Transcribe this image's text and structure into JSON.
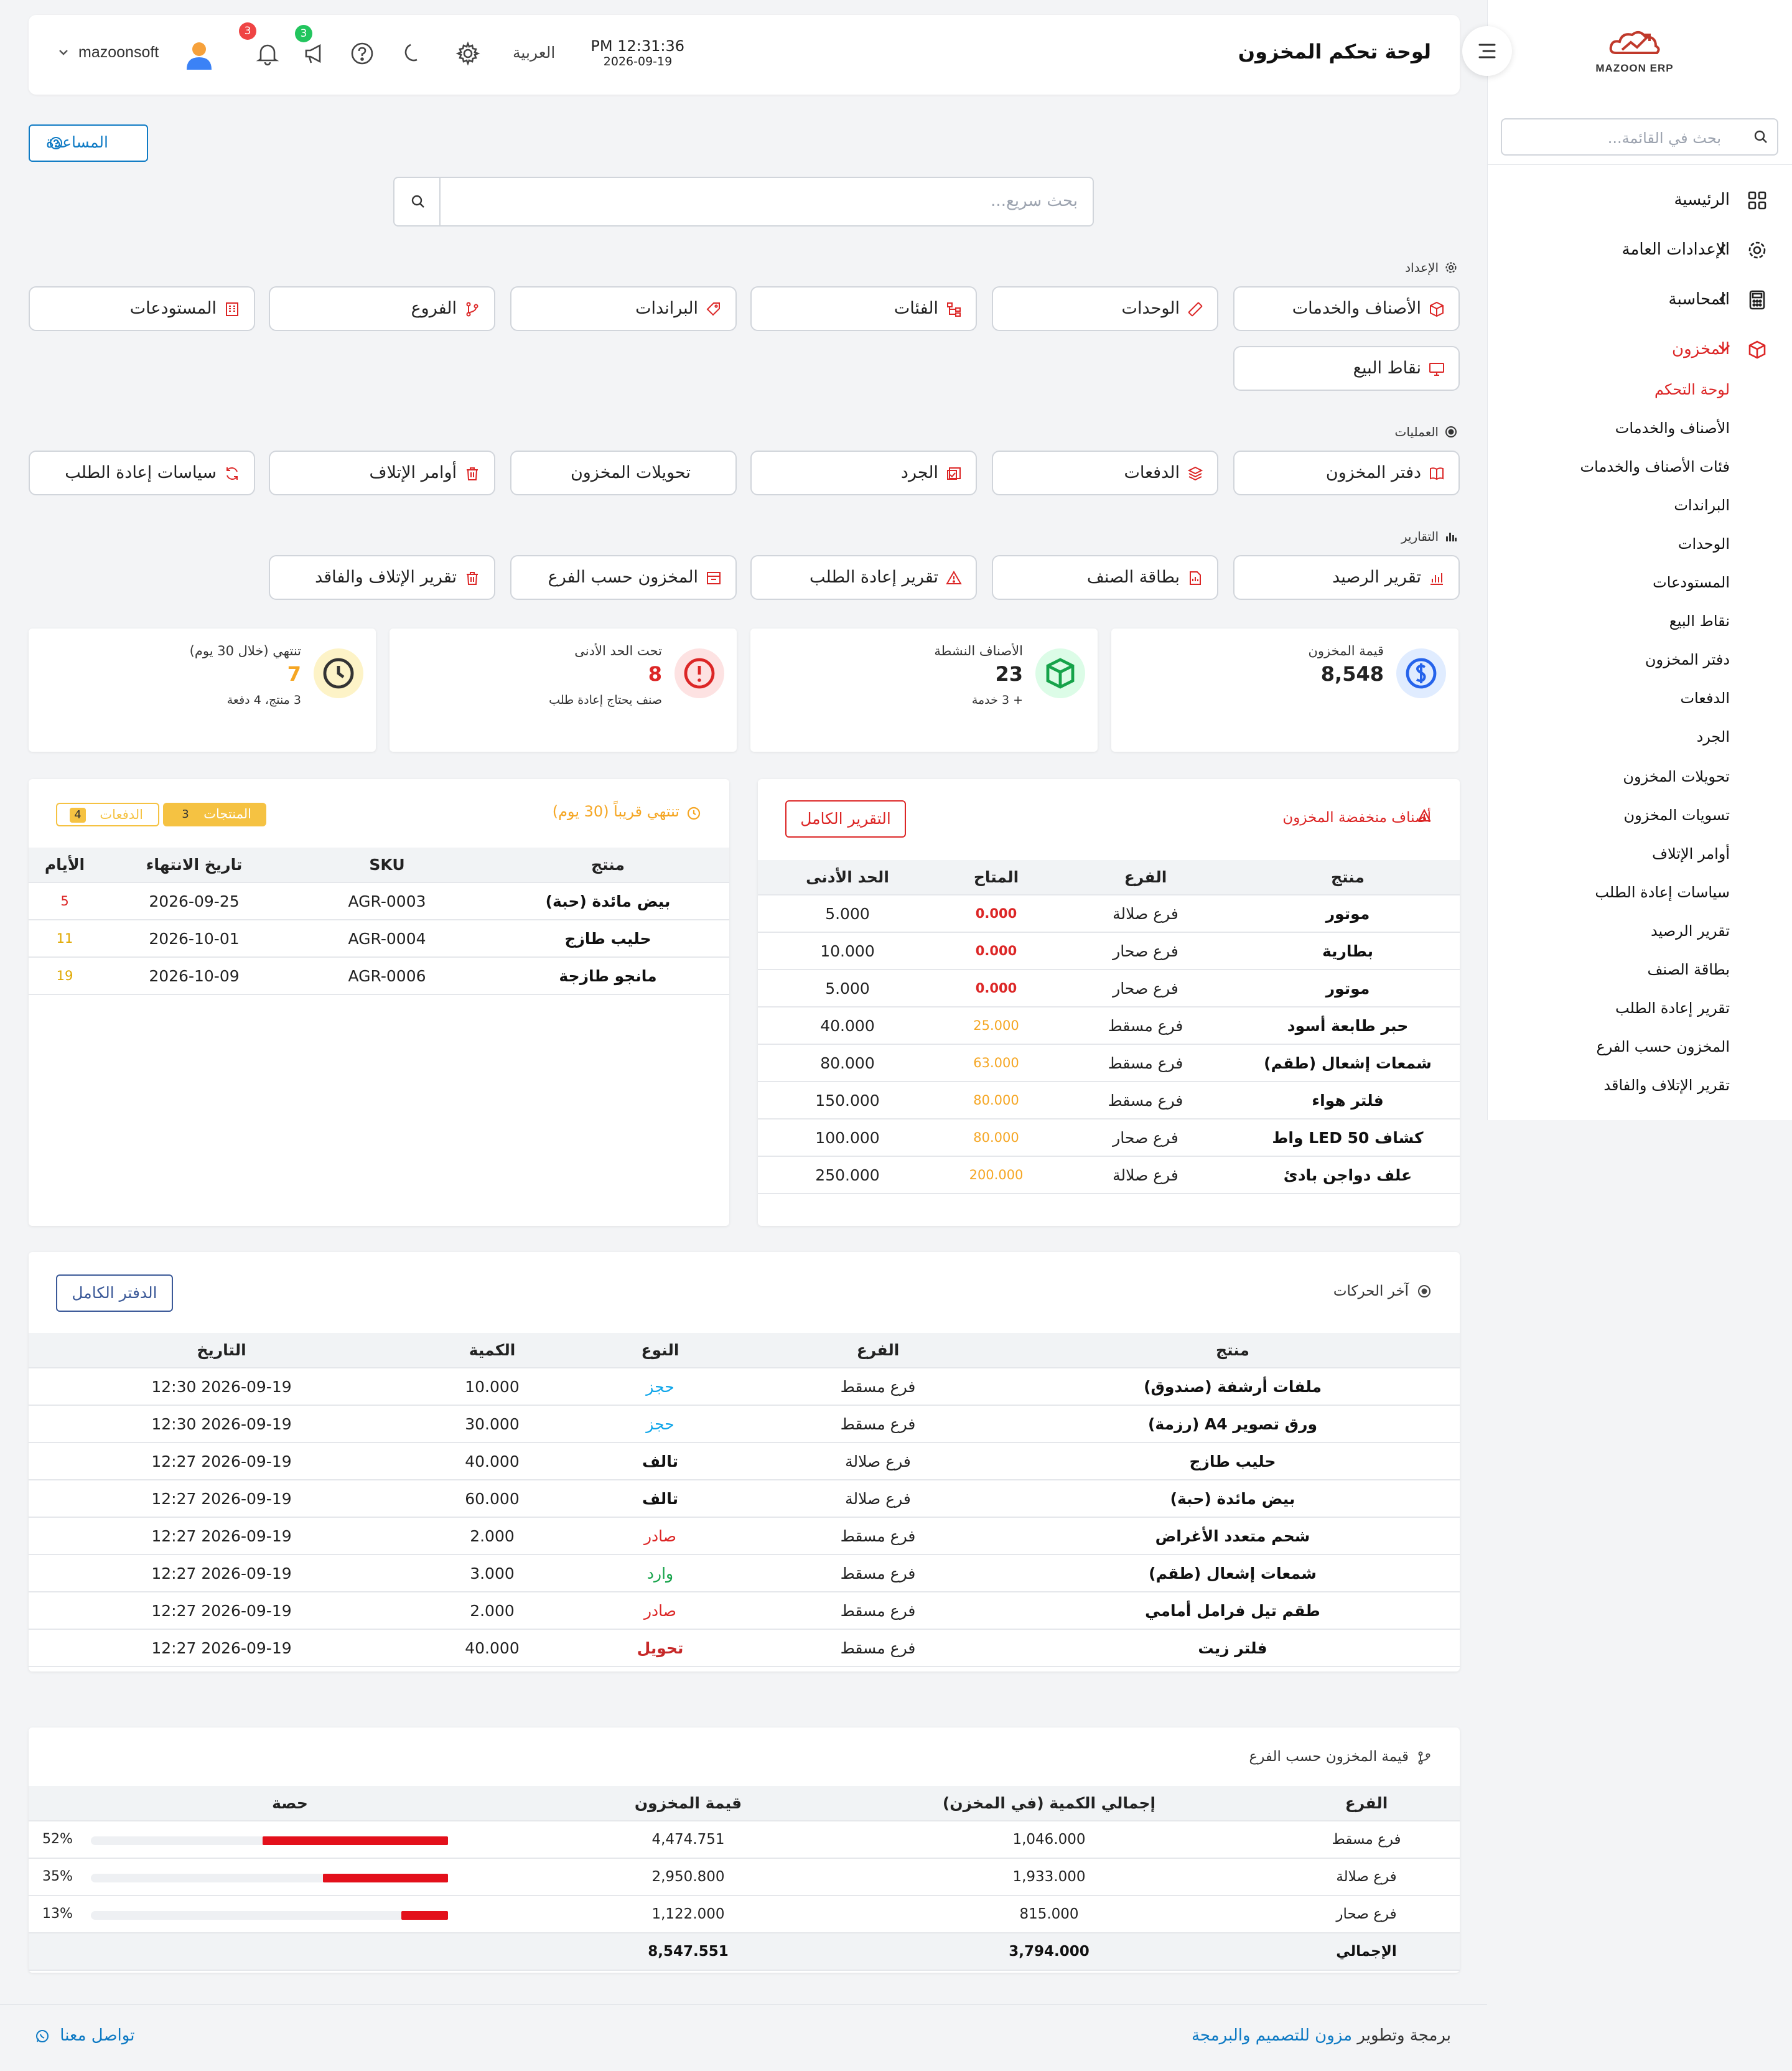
{
  "sidebar": {
    "brand": "MAZOON ERP",
    "search_placeholder": "بحث في القائمة...",
    "menu": [
      {
        "label": "الرئيسية"
      },
      {
        "label": "الإعدادات العامة"
      },
      {
        "label": "المحاسبة"
      },
      {
        "label": "المخزون"
      }
    ],
    "inventory_sub": [
      "لوحة التحكم",
      "الأصناف والخدمات",
      "فئات الأصناف والخدمات",
      "البراندات",
      "الوحدات",
      "المستودعات",
      "نقاط البيع",
      "دفتر المخزون",
      "الدفعات",
      "الجرد",
      "تحويلات المخزون",
      "تسويات المخزون",
      "أوامر الإتلاف",
      "سياسات إعادة الطلب",
      "تقرير الرصيد",
      "بطاقة الصنف",
      "تقرير إعادة الطلب",
      "المخزون حسب الفرع",
      "تقرير الإتلاف والفاقد"
    ]
  },
  "header": {
    "title": "لوحة تحكم المخزون",
    "time": "PM 12:31:36",
    "date": "2026-09-19",
    "language": "العربية",
    "username": "mazoonsoft",
    "notif_count": "3",
    "announce_count": "3"
  },
  "help_label": "المساعدة",
  "search_placeholder": "بحث سريع...",
  "sections": {
    "setup": "الإعداد",
    "operations": "العمليات",
    "reports": "التقارير"
  },
  "setup_buttons": [
    "الأصناف والخدمات",
    "الوحدات",
    "الفئات",
    "البراندات",
    "الفروع",
    "المستودعات",
    "نقاط البيع"
  ],
  "ops_buttons": [
    "دفتر المخزون",
    "الدفعات",
    "الجرد",
    "تحويلات المخزون",
    "أوامر الإتلاف",
    "سياسات إعادة الطلب"
  ],
  "report_buttons": [
    "تقرير الرصيد",
    "بطاقة الصنف",
    "تقرير إعادة الطلب",
    "المخزون حسب الفرع",
    "تقرير الإتلاف والفاقد"
  ],
  "stats": [
    {
      "label": "قيمة المخزون",
      "value": "8,548",
      "sub": ""
    },
    {
      "label": "الأصناف النشطة",
      "value": "23",
      "sub": "+ 3 خدمة"
    },
    {
      "label": "تحت الحد الأدنى",
      "value": "8",
      "sub": "صنف يحتاج إعادة طلب"
    },
    {
      "label": "تنتهي (خلال 30 يوم)",
      "value": "7",
      "sub": "3 منتج، 4 دفعة"
    }
  ],
  "low_stock": {
    "title": "أصناف منخفضة المخزون",
    "button": "التقرير الكامل",
    "columns": [
      "منتج",
      "الفرع",
      "المتاح",
      "الحد الأدنى"
    ],
    "rows": [
      [
        "موتور",
        "فرع صلالة",
        "0.000",
        "5.000"
      ],
      [
        "بطارية",
        "فرع صحار",
        "0.000",
        "10.000"
      ],
      [
        "موتور",
        "فرع صحار",
        "0.000",
        "5.000"
      ],
      [
        "حبر طابعة أسود",
        "فرع مسقط",
        "25.000",
        "40.000"
      ],
      [
        "شمعات إشعال (طقم)",
        "فرع مسقط",
        "63.000",
        "80.000"
      ],
      [
        "فلتر هواء",
        "فرع مسقط",
        "80.000",
        "150.000"
      ],
      [
        "كشاف LED 50 واط",
        "فرع صحار",
        "80.000",
        "100.000"
      ],
      [
        "علف دواجن بادئ",
        "فرع صلالة",
        "200.000",
        "250.000"
      ]
    ]
  },
  "expiring": {
    "title": "تنتهي قريباً (30 يوم)",
    "tab_products": "المنتجات",
    "tab_products_count": "3",
    "tab_batches": "الدفعات",
    "tab_batches_count": "4",
    "columns": [
      "منتج",
      "SKU",
      "تاريخ الانتهاء",
      "الأيام"
    ],
    "rows": [
      [
        "بيض مائدة (حبة)",
        "AGR-0003",
        "2026-09-25",
        "5"
      ],
      [
        "حليب طازج",
        "AGR-0004",
        "2026-10-01",
        "11"
      ],
      [
        "مانجو طازجة",
        "AGR-0006",
        "2026-10-09",
        "19"
      ]
    ]
  },
  "movements": {
    "title": "آخر الحركات",
    "button": "الدفتر الكامل",
    "columns": [
      "منتج",
      "الفرع",
      "النوع",
      "الكمية",
      "التاريخ"
    ],
    "rows": [
      [
        "ملفات أرشفة (صندوق)",
        "فرع مسقط",
        "حجز",
        "10.000",
        "2026-09-19 12:30"
      ],
      [
        "ورق تصوير A4 (رزمة)",
        "فرع مسقط",
        "حجز",
        "30.000",
        "2026-09-19 12:30"
      ],
      [
        "حليب طازج",
        "فرع صلالة",
        "تالف",
        "40.000",
        "2026-09-19 12:27"
      ],
      [
        "بيض مائدة (حبة)",
        "فرع صلالة",
        "تالف",
        "60.000",
        "2026-09-19 12:27"
      ],
      [
        "شحم متعدد الأغراض",
        "فرع مسقط",
        "صادر",
        "2.000",
        "2026-09-19 12:27"
      ],
      [
        "شمعات إشعال (طقم)",
        "فرع مسقط",
        "وارد",
        "3.000",
        "2026-09-19 12:27"
      ],
      [
        "طقم تيل فرامل أمامي",
        "فرع مسقط",
        "صادر",
        "2.000",
        "2026-09-19 12:27"
      ],
      [
        "فلتر زيت",
        "فرع مسقط",
        "تحويل",
        "40.000",
        "2026-09-19 12:27"
      ]
    ]
  },
  "branch_value": {
    "title": "قيمة المخزون حسب الفرع",
    "columns": [
      "الفرع",
      "إجمالي الكمية (في المخزن)",
      "قيمة المخزون",
      "حصة"
    ],
    "rows": [
      {
        "branch": "فرع مسقط",
        "qty": "1,046.000",
        "value": "4,474.751",
        "share": 52,
        "share_label": "52%"
      },
      {
        "branch": "فرع صلالة",
        "qty": "1,933.000",
        "value": "2,950.800",
        "share": 35,
        "share_label": "35%"
      },
      {
        "branch": "فرع صحار",
        "qty": "815.000",
        "value": "1,122.000",
        "share": 13,
        "share_label": "13%"
      }
    ],
    "total_label": "الإجمالي",
    "total_qty": "3,794.000",
    "total_value": "8,547.551"
  },
  "footer": {
    "credit_prefix": "برمجة وتطوير",
    "credit_link": "مزون للتصميم والبرمجة",
    "contact": "تواصل معنا"
  },
  "colors": {
    "accent_red": "#dc2626",
    "link_blue": "#0e7ac4",
    "warning": "#f5a623",
    "bar_red": "#e3101b"
  }
}
